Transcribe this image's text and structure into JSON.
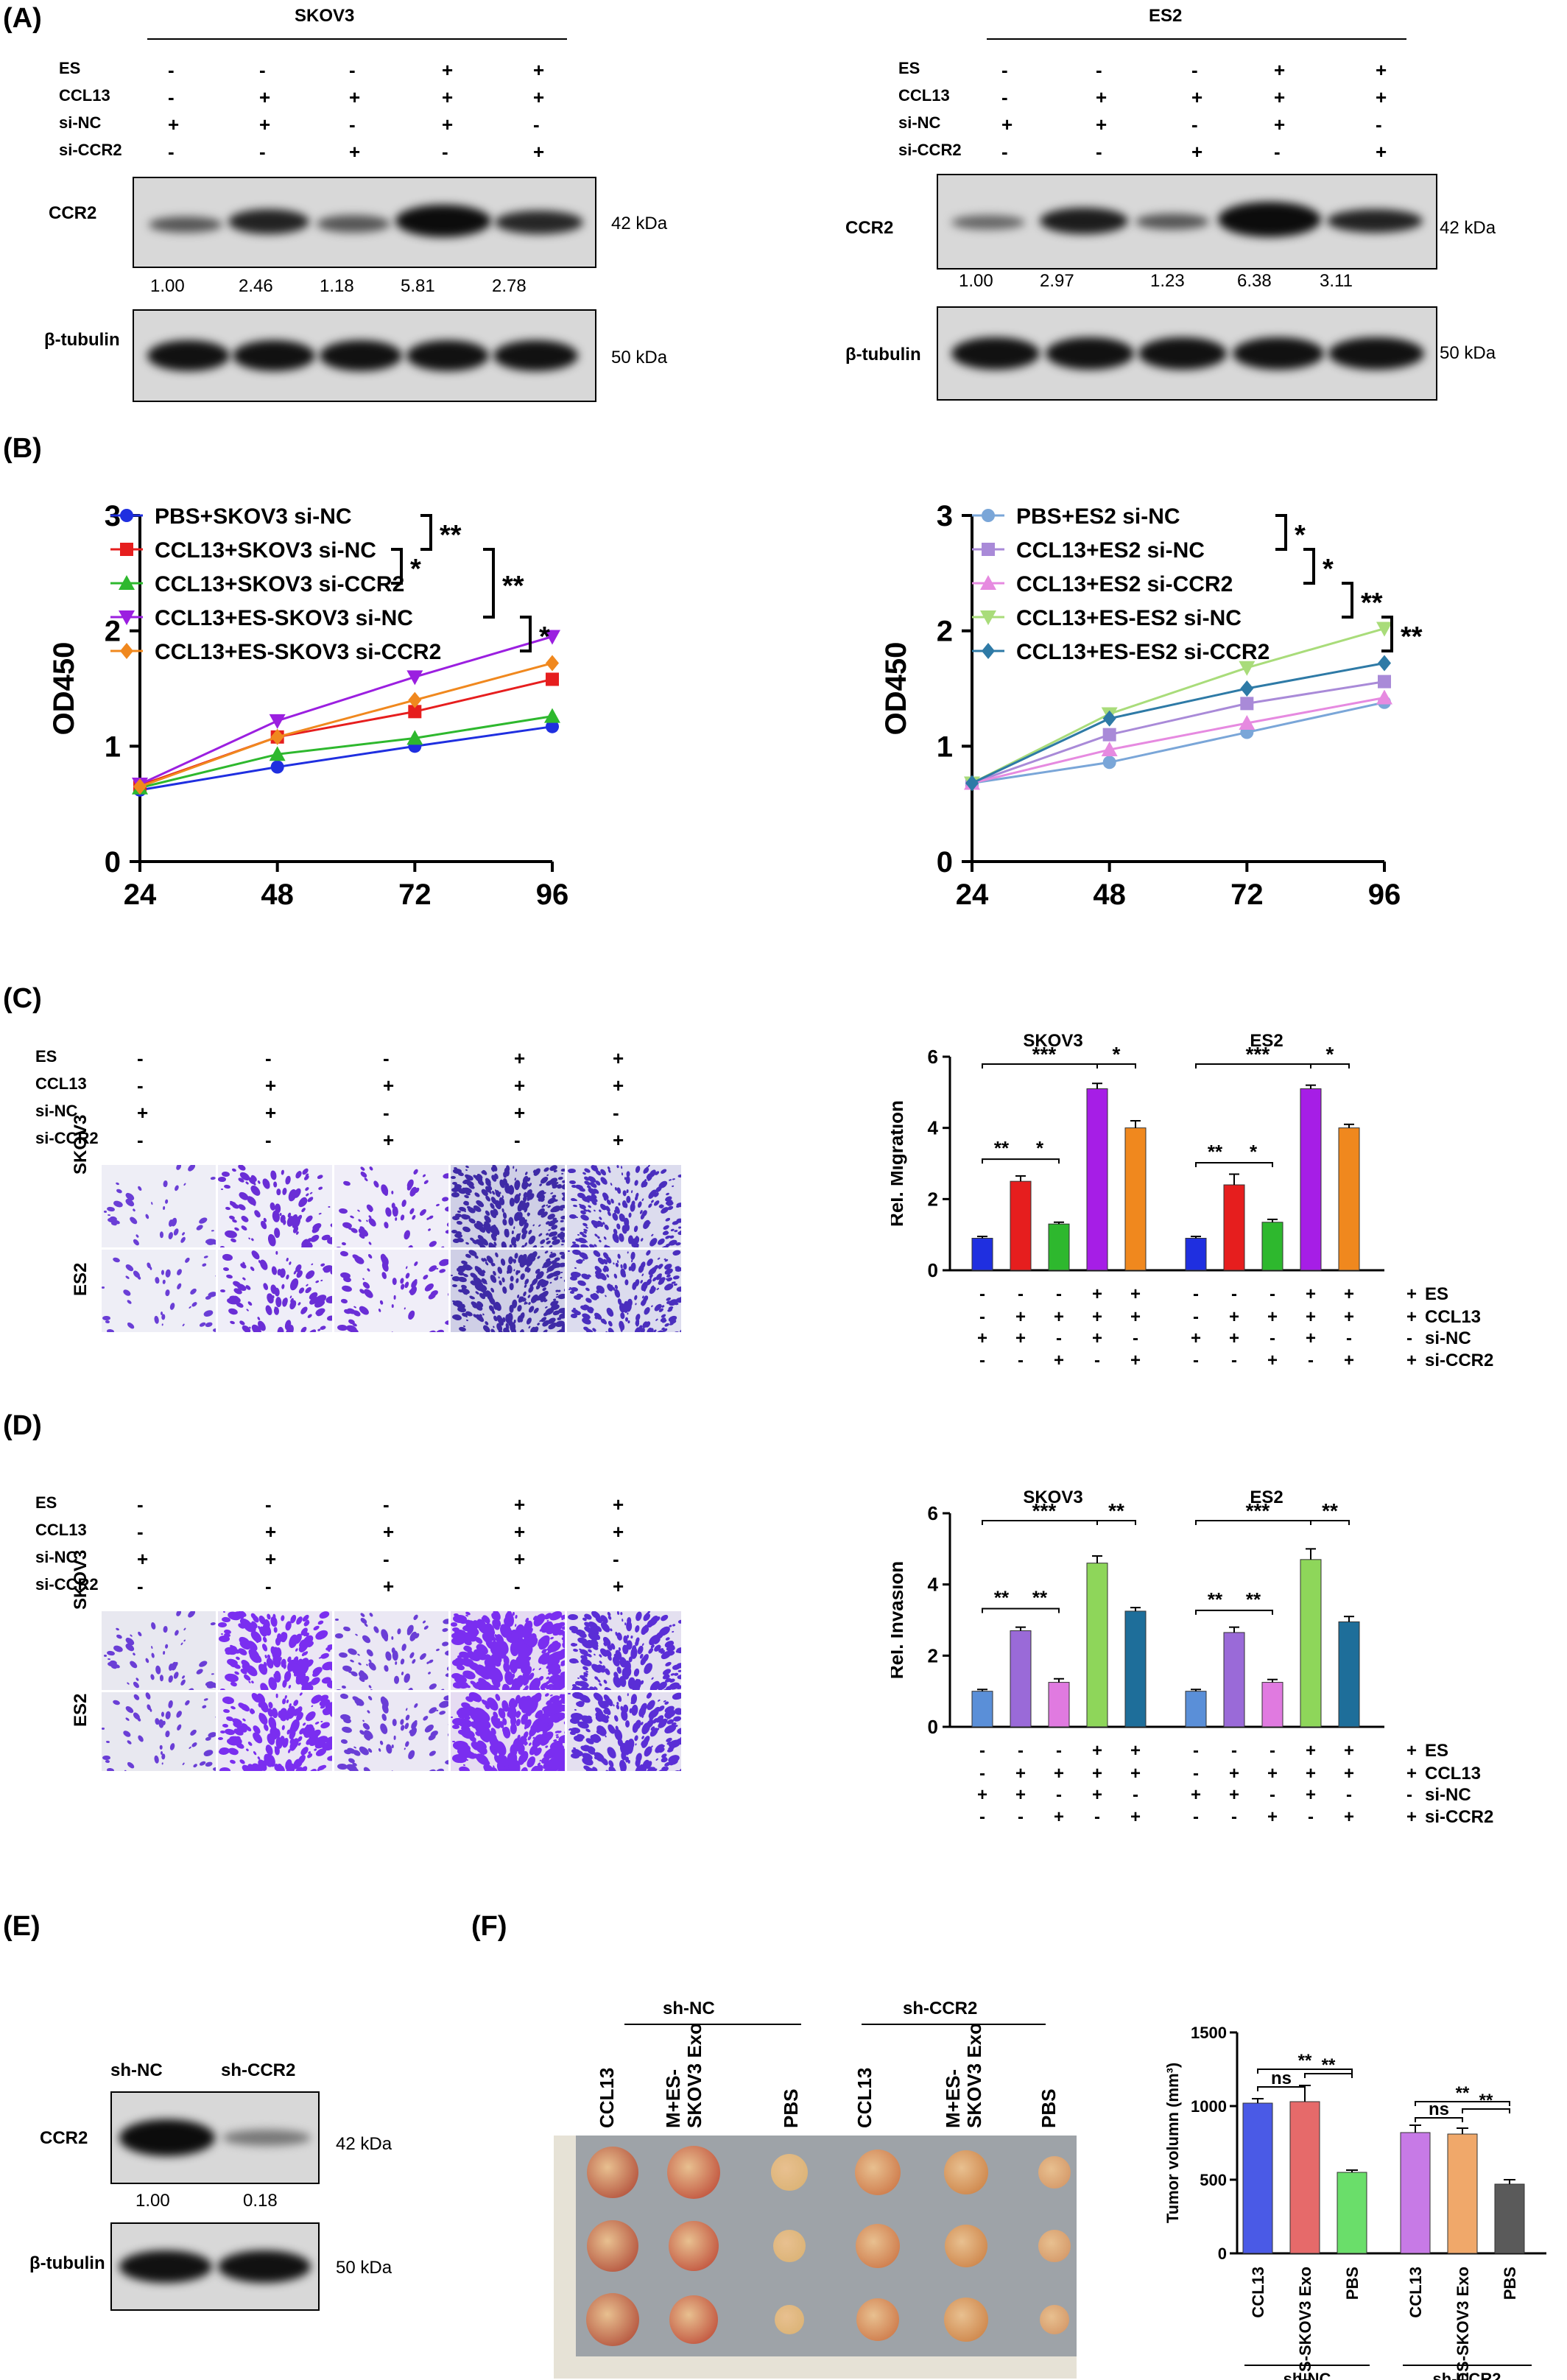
{
  "panels": {
    "A": "(A)",
    "B": "(B)",
    "C": "(C)",
    "D": "(D)",
    "E": "(E)",
    "F": "(F)"
  },
  "row_labels": {
    "es": "ES",
    "ccl13": "CCL13",
    "sinc": "si-NC",
    "siccr2": "si-CCR2"
  },
  "conditions": {
    "es": [
      "-",
      "-",
      "-",
      "+",
      "+"
    ],
    "ccl13": [
      "-",
      "+",
      "+",
      "+",
      "+"
    ],
    "sinc": [
      "+",
      "+",
      "-",
      "+",
      "-"
    ],
    "siccr2": [
      "-",
      "-",
      "+",
      "-",
      "+"
    ]
  },
  "panelA": {
    "skov3_title": "SKOV3",
    "es2_title": "ES2",
    "ccr2": "CCR2",
    "tubulin": "β-tubulin",
    "kda42": "42 kDa",
    "kda50": "50 kDa",
    "skov3_values": [
      "1.00",
      "2.46",
      "1.18",
      "5.81",
      "2.78"
    ],
    "es2_values": [
      "1.00",
      "2.97",
      "1.23",
      "6.38",
      "3.11"
    ]
  },
  "panelE": {
    "shnc": "sh-NC",
    "shccr2": "sh-CCR2",
    "ccr2": "CCR2",
    "tubulin": "β-tubulin",
    "kda42": "42 kDa",
    "kda50": "50 kDa",
    "values": [
      "1.00",
      "0.18"
    ]
  },
  "panelF": {
    "shnc": "sh-NC",
    "shccr2": "sh-CCR2",
    "cols": [
      "CCL13",
      "M+ES-\nSKOV3 Exo",
      "PBS",
      "CCL13",
      "M+ES-\nSKOV3 Exo",
      "PBS"
    ]
  },
  "micro": {
    "skov3": "SKOV3",
    "es2": "ES2"
  },
  "chart_data": [
    {
      "type": "line",
      "title": "",
      "xlabel": "",
      "ylabel": "OD450",
      "x": [
        24,
        48,
        72,
        96
      ],
      "ylim": [
        0,
        3
      ],
      "yticks": [
        0,
        1,
        2,
        3
      ],
      "series": [
        {
          "name": "PBS+SKOV3 si-NC",
          "color": "#1f2fe0",
          "marker": "circle",
          "values": [
            0.62,
            0.82,
            1.0,
            1.17
          ]
        },
        {
          "name": "CCL13+SKOV3 si-NC",
          "color": "#e61e1e",
          "marker": "square",
          "values": [
            0.66,
            1.08,
            1.3,
            1.58
          ]
        },
        {
          "name": "CCL13+SKOV3 si-CCR2",
          "color": "#2eb82e",
          "marker": "triangle-up",
          "values": [
            0.64,
            0.93,
            1.07,
            1.26
          ]
        },
        {
          "name": "CCL13+ES-SKOV3 si-NC",
          "color": "#9b1fe0",
          "marker": "triangle-down",
          "values": [
            0.67,
            1.22,
            1.6,
            1.95
          ]
        },
        {
          "name": "CCL13+ES-SKOV3 si-CCR2",
          "color": "#f0881e",
          "marker": "diamond",
          "values": [
            0.65,
            1.08,
            1.4,
            1.72
          ]
        }
      ],
      "sig": [
        "**",
        "*",
        "**",
        "*"
      ]
    },
    {
      "type": "line",
      "title": "",
      "xlabel": "",
      "ylabel": "OD450",
      "x": [
        24,
        48,
        72,
        96
      ],
      "ylim": [
        0,
        3
      ],
      "yticks": [
        0,
        1,
        2,
        3
      ],
      "series": [
        {
          "name": "PBS+ES2 si-NC",
          "color": "#7aa6d8",
          "marker": "circle",
          "values": [
            0.68,
            0.86,
            1.12,
            1.38
          ]
        },
        {
          "name": "CCL13+ES2 si-NC",
          "color": "#a98ad8",
          "marker": "square",
          "values": [
            0.68,
            1.1,
            1.37,
            1.56
          ]
        },
        {
          "name": "CCL13+ES2 si-CCR2",
          "color": "#e68ae0",
          "marker": "triangle-up",
          "values": [
            0.68,
            0.97,
            1.2,
            1.42
          ]
        },
        {
          "name": "CCL13+ES-ES2 si-NC",
          "color": "#a9dc7a",
          "marker": "triangle-down",
          "values": [
            0.68,
            1.28,
            1.68,
            2.02
          ]
        },
        {
          "name": "CCL13+ES-ES2 si-CCR2",
          "color": "#2e7aa6",
          "marker": "diamond",
          "values": [
            0.68,
            1.24,
            1.5,
            1.72
          ]
        }
      ],
      "sig": [
        "*",
        "*",
        "**",
        "**"
      ]
    },
    {
      "type": "bar",
      "ylabel": "Rel. Migration",
      "ylim": [
        0,
        6
      ],
      "yticks": [
        0,
        2,
        4,
        6
      ],
      "groups": [
        "SKOV3",
        "ES2"
      ],
      "colors": [
        "#1f2fe0",
        "#e61e1e",
        "#2eb82e",
        "#a61ee6",
        "#f0881e"
      ],
      "series": [
        {
          "values": [
            0.9,
            2.5,
            1.3,
            5.1,
            4.0
          ],
          "errors": [
            0.05,
            0.15,
            0.05,
            0.15,
            0.2
          ]
        },
        {
          "values": [
            0.9,
            2.4,
            1.35,
            5.1,
            4.0
          ],
          "errors": [
            0.05,
            0.3,
            0.08,
            0.1,
            0.1
          ]
        }
      ],
      "sig": [
        "***",
        "*",
        "**",
        "*"
      ]
    },
    {
      "type": "bar",
      "ylabel": "Rel. Invasion",
      "ylim": [
        0,
        6
      ],
      "yticks": [
        0,
        2,
        4,
        6
      ],
      "groups": [
        "SKOV3",
        "ES2"
      ],
      "colors": [
        "#5a8fd8",
        "#9a6ad8",
        "#e07ae0",
        "#8ed65a",
        "#1e6e9a"
      ],
      "series": [
        {
          "values": [
            1.0,
            2.7,
            1.25,
            4.6,
            3.25
          ],
          "errors": [
            0.05,
            0.1,
            0.1,
            0.2,
            0.1
          ]
        },
        {
          "values": [
            1.0,
            2.65,
            1.25,
            4.7,
            2.95
          ],
          "errors": [
            0.05,
            0.15,
            0.08,
            0.3,
            0.15
          ]
        }
      ],
      "sig": [
        "***",
        "**",
        "**",
        "**"
      ]
    },
    {
      "type": "bar",
      "ylabel": "Tumor volumn (mm³)",
      "ylim": [
        0,
        1500
      ],
      "yticks": [
        0,
        500,
        1000,
        1500
      ],
      "categories": [
        "CCL13",
        "M+ES-SKOV3 Exo",
        "PBS",
        "CCL13",
        "M+ES-SKOV3 Exo",
        "PBS"
      ],
      "group_labels": [
        "sh-NC",
        "sh-CCR2"
      ],
      "colors": [
        "#4a5ae6",
        "#e66a6a",
        "#6ade6a",
        "#c77ae6",
        "#f0a86a",
        "#5a5a5a"
      ],
      "values": [
        1020,
        1030,
        550,
        820,
        810,
        470
      ],
      "errors": [
        30,
        110,
        15,
        50,
        40,
        30
      ],
      "sig": [
        "**",
        "ns",
        "**",
        "**",
        "ns",
        "**"
      ]
    }
  ]
}
